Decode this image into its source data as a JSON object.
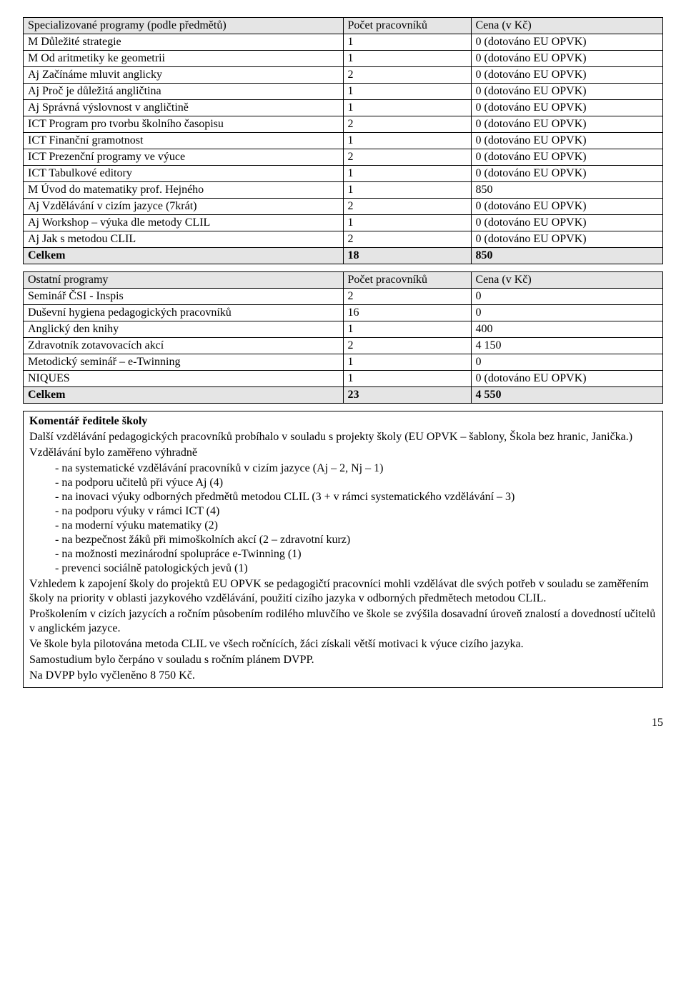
{
  "table1": {
    "header": [
      "Specializované programy (podle předmětů)",
      "Počet pracovníků",
      "Cena (v Kč)"
    ],
    "rows": [
      [
        "M Důležité strategie",
        "1",
        "0 (dotováno EU OPVK)"
      ],
      [
        "M Od aritmetiky ke geometrii",
        "1",
        "0 (dotováno EU OPVK)"
      ],
      [
        "Aj Začínáme mluvit anglicky",
        "2",
        "0 (dotováno EU OPVK)"
      ],
      [
        "Aj Proč je důležitá angličtina",
        "1",
        "0 (dotováno EU OPVK)"
      ],
      [
        "Aj Správná výslovnost v angličtině",
        "1",
        "0 (dotováno EU OPVK)"
      ],
      [
        "ICT Program pro tvorbu školního časopisu",
        "2",
        "0 (dotováno EU OPVK)"
      ],
      [
        "ICT Finanční gramotnost",
        "1",
        "0 (dotováno EU OPVK)"
      ],
      [
        "ICT Prezenční programy ve výuce",
        "2",
        "0 (dotováno EU OPVK)"
      ],
      [
        "ICT Tabulkové editory",
        "1",
        "0 (dotováno EU OPVK)"
      ],
      [
        "M Úvod do matematiky prof. Hejného",
        "1",
        "850"
      ],
      [
        "Aj Vzdělávání v cizím jazyce (7krát)",
        "2",
        "0 (dotováno EU OPVK)"
      ],
      [
        "Aj Workshop – výuka dle metody CLIL",
        "1",
        "0 (dotováno EU OPVK)"
      ],
      [
        "Aj Jak s metodou CLIL",
        "2",
        "0 (dotováno EU OPVK)"
      ]
    ],
    "total": [
      "Celkem",
      "18",
      "850"
    ]
  },
  "table2": {
    "header": [
      "Ostatní programy",
      "Počet pracovníků",
      "Cena (v Kč)"
    ],
    "rows": [
      [
        "Seminář ČSI - Inspis",
        "2",
        "0"
      ],
      [
        "Duševní hygiena pedagogických pracovníků",
        "16",
        "0"
      ],
      [
        "Anglický den knihy",
        "1",
        "400"
      ],
      [
        "Zdravotník zotavovacích akcí",
        "2",
        "4 150"
      ],
      [
        "Metodický seminář – e-Twinning",
        "1",
        "0"
      ],
      [
        "NIQUES",
        "1",
        "0 (dotováno EU OPVK)"
      ]
    ],
    "total": [
      "Celkem",
      "23",
      "4 550"
    ]
  },
  "commentary": {
    "title": "Komentář ředitele školy",
    "p1": "Další vzdělávání pedagogických pracovníků probíhalo v souladu s projekty školy (EU OPVK – šablony, Škola bez hranic, Janička.)",
    "p2": "Vzdělávání bylo zaměřeno výhradně",
    "bullets": [
      "na systematické vzdělávání pracovníků v cizím jazyce (Aj – 2, Nj – 1)",
      "na podporu učitelů při výuce Aj (4)",
      "na inovaci výuky odborných předmětů metodou CLIL (3 + v rámci systematického vzdělávání – 3)",
      "na podporu výuky v rámci ICT (4)",
      "na moderní výuku  matematiky (2)",
      "na bezpečnost žáků při mimoškolních akcí (2 – zdravotní kurz)",
      "na možnosti mezinárodní spolupráce e-Twinning (1)",
      "prevenci sociálně patologických jevů (1)"
    ],
    "p3": "Vzhledem k zapojení školy do projektů EU OPVK se pedagogičtí pracovníci mohli vzdělávat dle svých potřeb v souladu se zaměřením školy na priority v oblasti jazykového vzdělávání, použití cizího jazyka v odborných předmětech metodou CLIL.",
    "p4": "Proškolením v cizích jazycích a ročním působením rodilého mluvčího ve škole se zvýšila dosavadní úroveň znalostí a dovedností učitelů v anglickém jazyce.",
    "p5": "Ve škole byla pilotována metoda CLIL ve všech ročnících, žáci získali větší motivaci k výuce cizího jazyka.",
    "p6": "Samostudium bylo čerpáno v souladu s ročním plánem DVPP.",
    "p7": "Na DVPP bylo vyčleněno 8 750 Kč."
  },
  "pageNumber": "15"
}
